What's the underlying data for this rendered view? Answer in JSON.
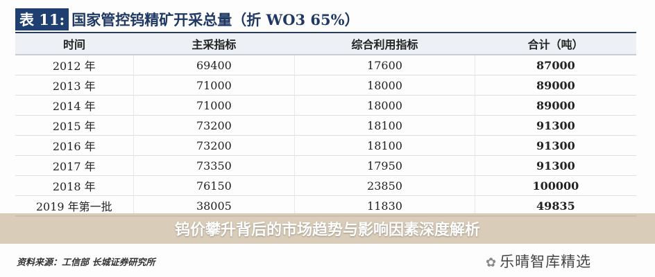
{
  "title": {
    "tag": "表 11:",
    "text": "国家管控钨精矿开采总量（折 WO3 65%）"
  },
  "table": {
    "headers": [
      "时间",
      "主采指标",
      "综合利用指标",
      "合计（吨）"
    ],
    "rows": [
      [
        "2012 年",
        "69400",
        "17600",
        "87000"
      ],
      [
        "2013 年",
        "71000",
        "18000",
        "89000"
      ],
      [
        "2014 年",
        "71000",
        "18000",
        "89000"
      ],
      [
        "2015 年",
        "73200",
        "18100",
        "91300"
      ],
      [
        "2016 年",
        "73200",
        "18100",
        "91300"
      ],
      [
        "2017 年",
        "73350",
        "17950",
        "91300"
      ],
      [
        "2018 年",
        "76150",
        "23850",
        "100000"
      ],
      [
        "2019 年第一批",
        "38005",
        "11830",
        "49835"
      ]
    ]
  },
  "banner": "钨价攀升背后的市场趋势与影响因素深度解析",
  "source": "资料来源：工信部 长城证券研究所",
  "watermark": {
    "icon": "wechat-icon",
    "text": "乐晴智库精选"
  }
}
